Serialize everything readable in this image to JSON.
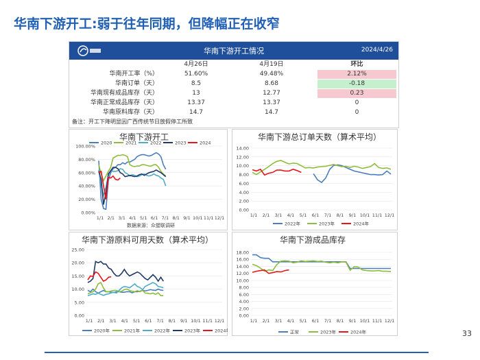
{
  "slide": {
    "title": "华南下游开工:弱于往年同期，但降幅正在收窄",
    "page_number": "33"
  },
  "table": {
    "title": "华南下游开工情况",
    "date": "2024/4/26",
    "columns": [
      "",
      "4月26日",
      "4月19日",
      "环比"
    ],
    "rows": [
      {
        "label": "华南开工率（%）",
        "cur": "51.60%",
        "prev": "49.48%",
        "chg": "2.12%",
        "chg_color": "#f6c8cf"
      },
      {
        "label": "华南订单（天）",
        "cur": "8.5",
        "prev": "8.68",
        "chg": "-0.18",
        "chg_color": "#c6efce"
      },
      {
        "label": "华南现有成品库存（天）",
        "cur": "13",
        "prev": "12.77",
        "chg": "0.23",
        "chg_color": "#f6c8cf"
      },
      {
        "label": "华南正常成品库存（天）",
        "cur": "13.37",
        "prev": "13.37",
        "chg": "0",
        "chg_color": "#ffffff"
      },
      {
        "label": "华南原料库存（天）",
        "cur": "14.7",
        "prev": "14.7",
        "chg": "0",
        "chg_color": "#ffffff"
      }
    ],
    "note": "备注：开工下降明显因广西传统节日放假停工所致"
  },
  "colors": {
    "y2020": "#4a7ebb",
    "y2021": "#8fbc3c",
    "y2022": "#4bacc6",
    "y2023": "#1f3864",
    "y2024": "#e8141b",
    "normal": "#4a7ebb",
    "green": "#8fbc3c"
  },
  "chart_data": [
    {
      "id": "c1",
      "type": "line",
      "title": "华南下游开工",
      "source": "数据来源：众塑联调研",
      "ylim": [
        0,
        100
      ],
      "yticks": [
        "0.00%",
        "20.00%",
        "40.00%",
        "60.00%",
        "80.00%",
        "100.00%"
      ],
      "xticks": [
        "1/1",
        "2/1",
        "3/1",
        "4/1",
        "5/1",
        "6/1",
        "7/1",
        "8/1",
        "9/1",
        "10/1",
        "11/1",
        "12/1"
      ],
      "legend_pos": "top",
      "series": [
        {
          "name": "2020",
          "color_key": "y2020",
          "values": [
            78,
            20,
            6,
            5,
            48,
            60,
            66,
            68,
            72,
            72,
            75,
            73,
            76,
            76,
            78,
            80,
            84,
            86,
            87,
            87,
            86,
            85,
            86,
            88,
            90,
            88,
            84,
            72,
            65
          ]
        },
        {
          "name": "2021",
          "color_key": "y2021",
          "values": [
            72,
            58,
            48,
            55,
            62,
            68,
            82,
            84,
            86,
            86,
            87,
            86,
            84,
            72,
            70,
            69,
            70,
            70,
            72,
            72,
            71,
            70,
            70,
            72,
            72,
            68,
            62,
            58,
            55
          ]
        },
        {
          "name": "2022",
          "color_key": "y2022",
          "values": [
            64,
            42,
            26,
            38,
            56,
            63,
            62,
            62,
            63,
            66,
            65,
            60,
            58,
            55,
            57,
            56,
            54,
            55,
            57,
            58,
            56,
            55,
            56,
            58,
            56,
            55,
            52,
            50,
            40
          ]
        },
        {
          "name": "2023",
          "color_key": "y2023",
          "values": [
            62,
            50,
            12,
            30,
            58,
            63,
            68,
            68,
            66,
            60,
            58,
            54,
            55,
            56,
            55,
            54,
            55,
            57,
            58,
            56,
            58,
            60,
            61,
            62,
            64,
            62,
            60,
            57,
            54
          ]
        },
        {
          "name": "2024",
          "color_key": "y2024",
          "values": [
            60,
            62,
            40,
            20,
            53,
            52,
            55,
            50,
            49,
            52
          ]
        }
      ]
    },
    {
      "id": "c2",
      "type": "line",
      "title": "华南下游总订单天数（算术平均）",
      "ylim": [
        0,
        14
      ],
      "yticks": [
        "0.00",
        "2.00",
        "4.00",
        "6.00",
        "8.00",
        "10.00",
        "12.00",
        "14.00"
      ],
      "xticks": [
        "1/1",
        "2/1",
        "3/1",
        "4/1",
        "5/1",
        "6/1",
        "7/1",
        "8/1",
        "9/1",
        "10/1",
        "11/1",
        "12/1"
      ],
      "legend_pos": "bottom",
      "series": [
        {
          "name": "2022年",
          "color_key": "y2020",
          "values": [
            null,
            null,
            null,
            null,
            null,
            null,
            null,
            null,
            null,
            null,
            null,
            null,
            null,
            null,
            null,
            8.2,
            6.8,
            6.2,
            7.2,
            9.2,
            10.1,
            10.2,
            10.0,
            9.6,
            9.2,
            8.8,
            8.6,
            8.4,
            8.2,
            8.0,
            8.0,
            7.9,
            8.0,
            8.8,
            8.1
          ]
        },
        {
          "name": "2023年",
          "color_key": "y2021",
          "values": [
            8.5,
            8.0,
            8.6,
            9.2,
            9.8,
            10.5,
            11.0,
            11.2,
            10.8,
            10.4,
            10.6,
            10.5,
            10.0,
            9.5,
            9.6,
            9.5,
            9.7,
            9.8,
            9.9,
            10.1,
            10.3,
            10.0,
            9.8,
            9.9,
            9.6,
            9.9,
            9.7,
            9.4,
            9.6,
            9.8,
            10.5,
            9.6,
            9.4,
            9.5,
            9.2
          ]
        },
        {
          "name": "2024年",
          "color_key": "y2024",
          "values": [
            9.1,
            8.8,
            9.2,
            7.9,
            8.3,
            8.5,
            9.0,
            9.0,
            8.8,
            8.8,
            9.2,
            8.9,
            8.5
          ]
        }
      ]
    },
    {
      "id": "c3",
      "type": "line",
      "title": "华南下游原料可用天数（算术平均）",
      "ylim": [
        0,
        25
      ],
      "yticks": [
        "0.00",
        "5.00",
        "10.00",
        "15.00",
        "20.00",
        "25.00"
      ],
      "xticks": [
        "1/1",
        "2/1",
        "3/1",
        "4/1",
        "5/1",
        "6/1",
        "7/1",
        "8/1",
        "9/1",
        "10/1",
        "11/1",
        "12/1"
      ],
      "legend_pos": "bottom",
      "series": [
        {
          "name": "2020年",
          "color_key": "y2020",
          "values": [
            9.5,
            9.0,
            10.0,
            9.0,
            8.5,
            9.0,
            9.5,
            9.0,
            9.0,
            8.8,
            8.7,
            9.0,
            9.0,
            8.8,
            8.8,
            9.0,
            9.0,
            8.6,
            9.0,
            9.0,
            9.2,
            9.5,
            9.3,
            9.5,
            9.8,
            9.6,
            9.5,
            10.0,
            9.6,
            9.5
          ]
        },
        {
          "name": "2021年",
          "color_key": "y2021",
          "values": [
            8.2,
            8.6,
            9.0,
            10.0,
            12.0,
            12.5,
            10.5,
            9.0,
            9.0,
            9.3,
            9.5,
            9.5,
            9.0,
            9.2,
            9.8,
            10.0,
            9.5,
            9.2,
            9.0,
            9.4,
            9.0,
            9.5,
            8.5,
            8.4,
            8.2,
            8.5,
            8.0,
            8.6,
            7.5,
            7.5
          ]
        },
        {
          "name": "2022年",
          "color_key": "y2022",
          "values": [
            7.5,
            7.8,
            8.2,
            8.0,
            8.5,
            8.0,
            7.6,
            8.0,
            8.2,
            8.6,
            8.8,
            8.5,
            9.5,
            10.5,
            11.0,
            10.8,
            10.5,
            11.2,
            12.0,
            11.0,
            10.6,
            9.8,
            11.0,
            11.5,
            12.0,
            12.5,
            12.0,
            11.0,
            10.8,
            10.5
          ]
        },
        {
          "name": "2023年",
          "color_key": "y2023",
          "values": [
            12.5,
            13.0,
            14.0,
            20.5,
            20.0,
            20.5,
            19.5,
            19.5,
            18.0,
            17.5,
            16.0,
            15.0,
            15.0,
            16.0,
            17.5,
            16.0,
            15.0,
            15.5,
            16.0,
            16.5,
            16.0,
            15.0,
            14.0,
            13.5,
            14.5,
            15.5,
            14.5,
            13.0,
            14.5,
            13.0
          ]
        },
        {
          "name": "2024年",
          "color_key": "y2024",
          "values": [
            13.5,
            15.0,
            14.8,
            16.5,
            16.0,
            14.5,
            13.0,
            13.5,
            14.5,
            14.7
          ]
        }
      ]
    },
    {
      "id": "c4",
      "type": "line",
      "title": "华南下游成品库存",
      "ylim": [
        0,
        18
      ],
      "yticks": [
        "0.00",
        "2.00",
        "4.00",
        "6.00",
        "8.00",
        "10.00",
        "12.00",
        "14.00",
        "16.00",
        "18.00"
      ],
      "xticks": [
        "1/1",
        "2/1",
        "3/1",
        "4/1",
        "5/1",
        "6/1",
        "7/1",
        "8/1",
        "9/1",
        "10/1",
        "11/1",
        "12/1"
      ],
      "legend_pos": "bottom",
      "series": [
        {
          "name": "正常",
          "color_key": "normal",
          "values": [
            17.3,
            17.3,
            16.5,
            16.3,
            16.3,
            15.3,
            15.3,
            15.3,
            15.3,
            15.3,
            15.3,
            15.3,
            15.3,
            15.3,
            15.3,
            15.3,
            15.3,
            15.3,
            15.3,
            15.3,
            15.3,
            15.3,
            15.3,
            15.3,
            13.4,
            13.4,
            13.4,
            13.4,
            13.4,
            13.4,
            13.4,
            13.4,
            13.4,
            13.4,
            13.4
          ]
        },
        {
          "name": "2023年",
          "color_key": "green",
          "values": [
            14.6,
            14.2,
            13.5,
            12.6,
            13.0,
            12.8,
            14.5,
            15.5,
            15.6,
            15.5,
            15.0,
            15.2,
            15.6,
            15.4,
            15.5,
            15.6,
            15.4,
            15.5,
            15.2,
            15.0,
            15.2,
            15.0,
            15.3,
            15.2,
            12.9,
            13.9,
            13.8,
            13.0,
            12.8,
            12.7,
            12.7,
            12.8,
            12.6,
            12.6,
            12.5
          ]
        },
        {
          "name": "2024年",
          "color_key": "y2024",
          "values": [
            12.3,
            12.6,
            12.8,
            13.0,
            12.0,
            12.2,
            12.5,
            12.4,
            12.8,
            13.0
          ]
        }
      ]
    }
  ]
}
